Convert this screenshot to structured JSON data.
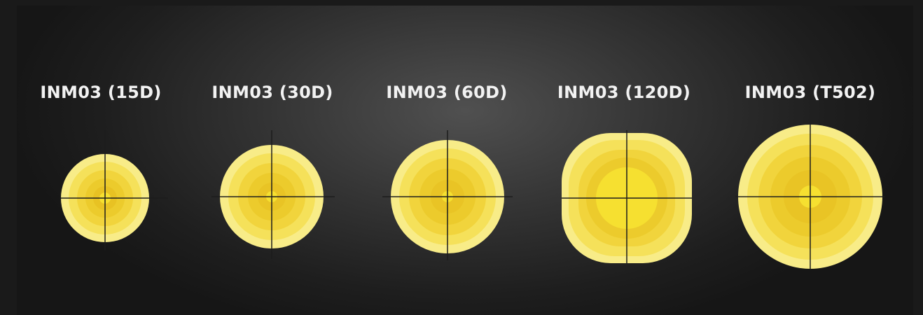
{
  "colors": {
    "background": "#1a1a1a",
    "label": "#f2f2f2",
    "crosshair": "#1c1c1c",
    "beam_rings": [
      "#f8ec88",
      "#f5e15a",
      "#f1d43c",
      "#eccb2c",
      "#e9c425",
      "#f6e030"
    ]
  },
  "beams": [
    {
      "label": "INM03 (15D)"
    },
    {
      "label": "INM03 (30D)"
    },
    {
      "label": "INM03 (60D)"
    },
    {
      "label": "INM03 (120D)"
    },
    {
      "label": "INM03 (T502)"
    }
  ]
}
